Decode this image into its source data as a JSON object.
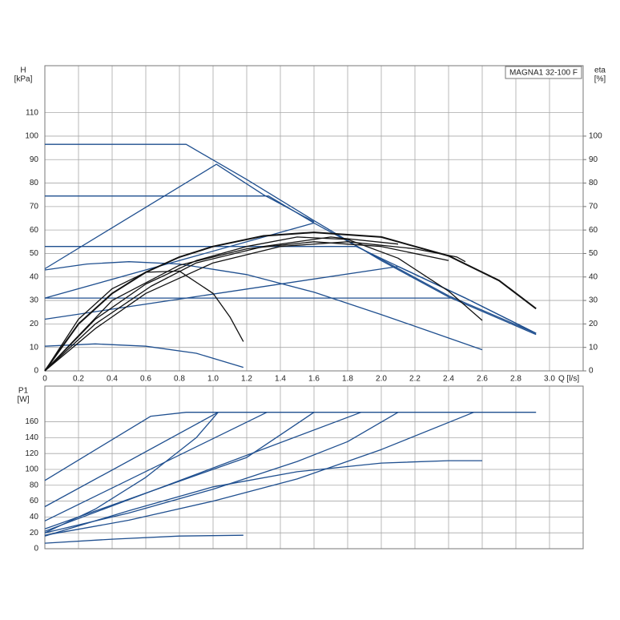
{
  "chart_data": [
    {
      "type": "line",
      "y_label": "H",
      "y_unit": "[kPa]",
      "y2_label": "eta",
      "y2_unit": "[%]",
      "x_label": "Q [l/s]",
      "annotation": "MAGNA1 32-100 F",
      "xlim": [
        0,
        3.2
      ],
      "ylim": [
        0,
        130
      ],
      "y2lim": [
        0,
        130
      ],
      "xticks": [
        0,
        0.2,
        0.4,
        0.6,
        0.8,
        {
          "value": 1,
          "label": "1.0"
        },
        1.2,
        1.4,
        1.6,
        1.8,
        {
          "value": 2,
          "label": "2.0"
        },
        2.2,
        2.4,
        2.6,
        2.8,
        {
          "value": 3,
          "label": "3.0"
        }
      ],
      "yticks": [
        0,
        10,
        20,
        30,
        40,
        50,
        60,
        70,
        80,
        90,
        100,
        110
      ],
      "y2ticks": [
        0,
        10,
        20,
        30,
        40,
        50,
        60,
        70,
        80,
        90,
        100
      ],
      "grid": true,
      "series": [
        {
          "color": "#1f4f8f",
          "x": [
            0,
            0.84,
            1.2,
            1.6,
            2.0,
            2.4,
            2.92
          ],
          "values": [
            96.5,
            96.5,
            81.5,
            64,
            47,
            31.5,
            15.5
          ]
        },
        {
          "color": "#1f4f8f",
          "x": [
            0,
            1.02,
            1.3,
            1.6
          ],
          "values": [
            43.5,
            88,
            75,
            63.5
          ]
        },
        {
          "color": "#1f4f8f",
          "x": [
            0,
            1.6
          ],
          "values": [
            31,
            63
          ]
        },
        {
          "color": "#1f4f8f",
          "x": [
            0,
            2.1,
            2.5,
            2.92
          ],
          "values": [
            22,
            44.5,
            31,
            16
          ]
        },
        {
          "color": "#1f4f8f",
          "x": [
            0,
            1.33,
            1.6,
            2.0,
            2.4,
            2.92
          ],
          "values": [
            74.5,
            74.5,
            63,
            47.5,
            32,
            16
          ]
        },
        {
          "color": "#1f4f8f",
          "x": [
            0,
            1.85,
            2.1,
            2.5,
            2.92
          ],
          "values": [
            53,
            53,
            44.5,
            31,
            16
          ]
        },
        {
          "color": "#1f4f8f",
          "x": [
            0,
            2.43
          ],
          "values": [
            31,
            31
          ]
        },
        {
          "color": "#1f4f8f",
          "x": [
            0,
            0.25,
            0.5,
            0.8,
            1.2,
            1.6,
            2.0,
            2.3,
            2.6
          ],
          "values": [
            43,
            45.5,
            46.5,
            45.5,
            41,
            33.5,
            24,
            16.5,
            9
          ]
        },
        {
          "color": "#1f4f8f",
          "x": [
            0,
            0.3,
            0.6,
            0.9,
            1.18
          ],
          "values": [
            10.5,
            11.5,
            10.5,
            7.5,
            1.5
          ]
        },
        {
          "color": "#111111",
          "axis": "y2",
          "x": [
            0,
            0.2,
            0.4,
            0.6,
            0.8,
            1.0,
            1.1,
            1.18
          ],
          "values": [
            0,
            22,
            35,
            42,
            42.5,
            33,
            23,
            12.5
          ]
        },
        {
          "color": "#111111",
          "axis": "y2",
          "width": 2,
          "x": [
            0,
            0.2,
            0.4,
            0.6,
            0.8,
            1.0,
            1.3,
            1.6,
            2.0,
            2.4,
            2.7,
            2.92
          ],
          "values": [
            0,
            20,
            33,
            42,
            48.5,
            53,
            57.5,
            59,
            57,
            49,
            38.5,
            26.5
          ]
        },
        {
          "color": "#111111",
          "axis": "y2",
          "x": [
            0,
            0.3,
            0.6,
            0.9,
            1.2,
            1.5,
            1.8,
            2.1,
            2.4,
            2.6
          ],
          "values": [
            0,
            22,
            37,
            47,
            53,
            57,
            56,
            48,
            34,
            21.5
          ]
        },
        {
          "color": "#111111",
          "axis": "y2",
          "x": [
            0,
            0.3,
            0.6,
            1.0,
            1.4,
            1.8,
            2.2,
            2.45,
            2.5
          ],
          "values": [
            0,
            18,
            33,
            46,
            53,
            55,
            52,
            48.5,
            46.5
          ]
        },
        {
          "color": "#111111",
          "axis": "y2",
          "x": [
            0,
            0.3,
            0.63,
            0.9,
            1.3,
            1.7,
            2.1
          ],
          "values": [
            0,
            20,
            36,
            46,
            53,
            57,
            54
          ]
        },
        {
          "color": "#111111",
          "axis": "y2",
          "x": [
            0,
            0.4,
            0.8,
            1.2,
            1.6,
            2.0,
            2.4
          ],
          "values": [
            0,
            30,
            45,
            52,
            55,
            53,
            47
          ]
        }
      ]
    },
    {
      "type": "line",
      "y_label": "P1",
      "y_unit": "[W]",
      "xlim": [
        0,
        3.2
      ],
      "ylim": [
        0,
        205
      ],
      "xticks": [
        0,
        0.2,
        0.4,
        0.6,
        0.8,
        1,
        1.2,
        1.4,
        1.6,
        1.8,
        2,
        2.2,
        2.4,
        2.6,
        2.8,
        3
      ],
      "yticks": [
        0,
        20,
        40,
        60,
        80,
        100,
        120,
        140,
        160
      ],
      "grid": true,
      "series": [
        {
          "color": "#1f4f8f",
          "x": [
            0,
            0.63,
            0.84,
            2.92
          ],
          "values": [
            86,
            167,
            172,
            172
          ]
        },
        {
          "color": "#1f4f8f",
          "x": [
            0,
            1.03
          ],
          "values": [
            53,
            172
          ]
        },
        {
          "color": "#1f4f8f",
          "x": [
            0,
            1.32
          ],
          "values": [
            35,
            172
          ]
        },
        {
          "color": "#1f4f8f",
          "x": [
            0,
            0.4,
            0.8,
            1.2,
            1.6
          ],
          "values": [
            25,
            55,
            85,
            115,
            172
          ]
        },
        {
          "color": "#1f4f8f",
          "x": [
            0,
            1.88
          ],
          "values": [
            22,
            172
          ]
        },
        {
          "color": "#1f4f8f",
          "x": [
            0,
            0.5,
            1.0,
            1.5,
            1.8,
            2.1
          ],
          "values": [
            20,
            45,
            75,
            110,
            135,
            172
          ]
        },
        {
          "color": "#1f4f8f",
          "x": [
            0,
            0.5,
            1.0,
            1.5,
            2.0,
            2.55
          ],
          "values": [
            17,
            36,
            60,
            88,
            125,
            172
          ]
        },
        {
          "color": "#1f4f8f",
          "x": [
            0,
            0.5,
            1.0,
            1.5,
            2.0,
            2.4,
            2.6
          ],
          "values": [
            16,
            48,
            78,
            97,
            108,
            111,
            111
          ]
        },
        {
          "color": "#1f4f8f",
          "x": [
            0,
            0.4,
            0.8,
            1.18
          ],
          "values": [
            7,
            12,
            16,
            17
          ]
        },
        {
          "color": "#1f4f8f",
          "x": [
            0,
            0.3,
            0.6,
            0.9,
            1.03
          ],
          "values": [
            20,
            50,
            90,
            140,
            172
          ]
        }
      ]
    }
  ]
}
